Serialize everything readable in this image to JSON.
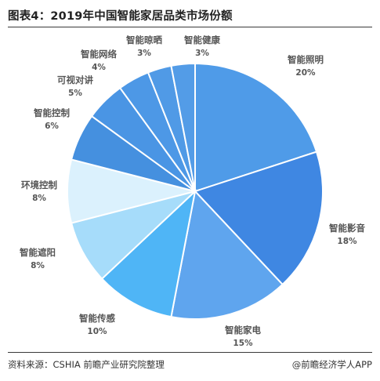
{
  "chart_data": {
    "type": "pie",
    "title": "图表4：2019年中国智能家居品类市场份额",
    "slices": [
      {
        "label": "智能照明",
        "value": 20,
        "pct": "20%",
        "color": "#4f9be8"
      },
      {
        "label": "智能影音",
        "value": 18,
        "pct": "18%",
        "color": "#3f87e2"
      },
      {
        "label": "智能家电",
        "value": 15,
        "pct": "15%",
        "color": "#5fa5ee"
      },
      {
        "label": "智能传感",
        "value": 10,
        "pct": "10%",
        "color": "#4fb5f6"
      },
      {
        "label": "智能遮阳",
        "value": 8,
        "pct": "8%",
        "color": "#a6dcfa"
      },
      {
        "label": "环境控制",
        "value": 8,
        "pct": "8%",
        "color": "#dbf1fd"
      },
      {
        "label": "智能控制",
        "value": 6,
        "pct": "6%",
        "color": "#4590df"
      },
      {
        "label": "可视对讲",
        "value": 5,
        "pct": "5%",
        "color": "#4a95e4"
      },
      {
        "label": "智能网络",
        "value": 4,
        "pct": "4%",
        "color": "#4d98e6"
      },
      {
        "label": "智能晾晒",
        "value": 3,
        "pct": "3%",
        "color": "#509ae6"
      },
      {
        "label": "智能健康",
        "value": 3,
        "pct": "3%",
        "color": "#539ce7"
      }
    ]
  },
  "footer": {
    "source": "资料来源：CSHIA 前瞻产业研究院整理",
    "brand": "@前瞻经济学人APP"
  }
}
